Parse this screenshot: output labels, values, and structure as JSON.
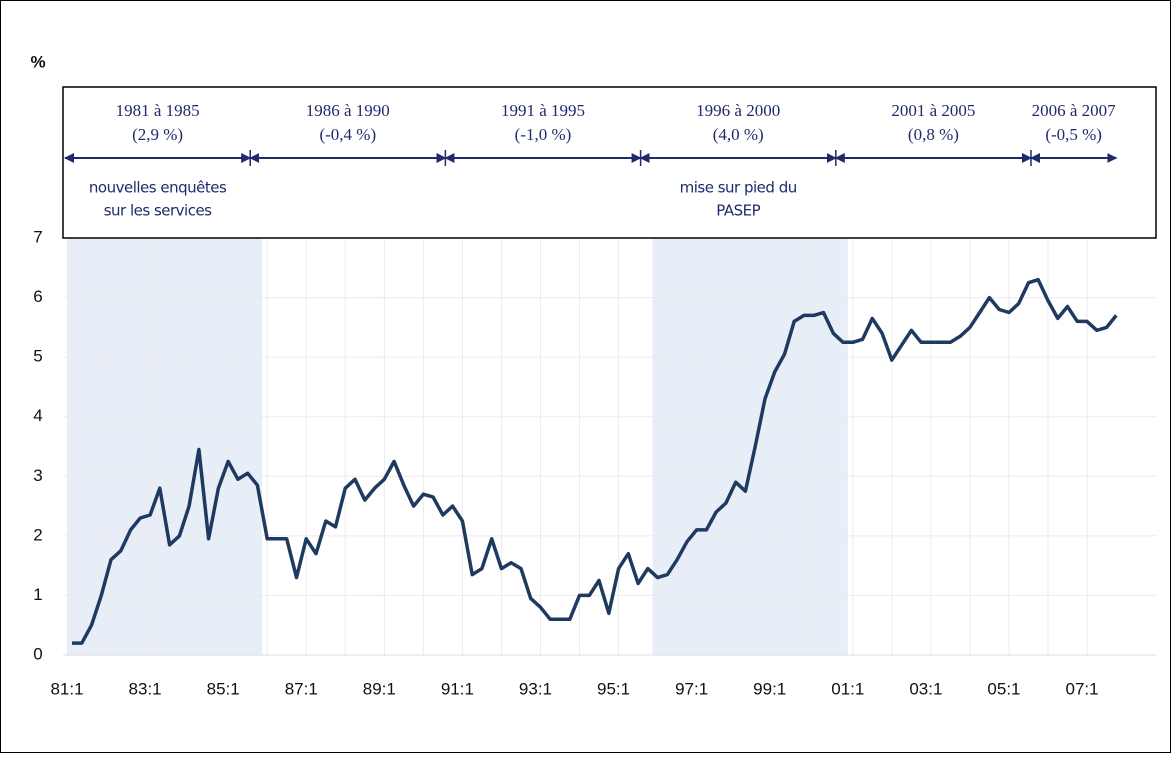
{
  "chart_data": {
    "type": "line",
    "y_label": "%",
    "categories": [
      "81:1",
      null,
      null,
      null,
      null,
      null,
      null,
      null,
      "83:1",
      null,
      null,
      null,
      null,
      null,
      null,
      null,
      "85:1",
      null,
      null,
      null,
      null,
      null,
      null,
      null,
      "87:1",
      null,
      null,
      null,
      null,
      null,
      null,
      null,
      "89:1",
      null,
      null,
      null,
      null,
      null,
      null,
      null,
      "91:1",
      null,
      null,
      null,
      null,
      null,
      null,
      null,
      "93:1",
      null,
      null,
      null,
      null,
      null,
      null,
      null,
      "95:1",
      null,
      null,
      null,
      null,
      null,
      null,
      null,
      "97:1",
      null,
      null,
      null,
      null,
      null,
      null,
      null,
      "99:1",
      null,
      null,
      null,
      null,
      null,
      null,
      null,
      "01:1",
      null,
      null,
      null,
      null,
      null,
      null,
      null,
      "03:1",
      null,
      null,
      null,
      null,
      null,
      null,
      null,
      "05:1",
      null,
      null,
      null,
      null,
      null,
      null,
      null,
      "07:1",
      null,
      null,
      null
    ],
    "series": [
      {
        "color": "#1f3a60",
        "values": [
          0.2,
          0.2,
          0.5,
          1.0,
          1.6,
          1.75,
          2.1,
          2.3,
          2.35,
          2.8,
          1.85,
          2.0,
          2.5,
          3.45,
          1.95,
          2.8,
          3.25,
          2.95,
          3.05,
          2.85,
          1.95,
          1.95,
          1.95,
          1.3,
          1.95,
          1.7,
          2.25,
          2.15,
          2.8,
          2.95,
          2.6,
          2.8,
          2.95,
          3.25,
          2.85,
          2.5,
          2.7,
          2.65,
          2.35,
          2.5,
          2.25,
          1.35,
          1.45,
          1.95,
          1.45,
          1.55,
          1.45,
          0.95,
          0.8,
          0.6,
          0.6,
          0.6,
          1.0,
          1.0,
          1.25,
          0.7,
          1.45,
          1.7,
          1.2,
          1.45,
          1.3,
          1.35,
          1.6,
          1.9,
          2.1,
          2.1,
          2.4,
          2.55,
          2.9,
          2.75,
          3.5,
          4.3,
          4.75,
          5.05,
          5.6,
          5.7,
          5.7,
          5.75,
          5.4,
          5.25,
          5.25,
          5.3,
          5.65,
          5.4,
          4.95,
          5.2,
          5.45,
          5.25,
          5.25,
          5.25,
          5.25,
          5.35,
          5.5,
          5.75,
          6.0,
          5.8,
          5.75,
          5.9,
          6.25,
          6.3,
          5.95,
          5.65,
          5.85,
          5.6,
          5.6,
          5.45,
          5.5,
          5.7
        ]
      }
    ],
    "ylim": [
      0,
      7
    ],
    "yticks": [
      0,
      1,
      2,
      3,
      4,
      5,
      6,
      7
    ],
    "grid": true,
    "shade_color": "#e8eef8",
    "periods": [
      {
        "label": "1981 à 1985",
        "growth": "(2,9 %)",
        "note": [
          "nouvelles enquêtes",
          "sur les services"
        ],
        "shaded": true
      },
      {
        "label": "1986 à 1990",
        "growth": "(-0,4  %)",
        "note": [],
        "shaded": false
      },
      {
        "label": "1991 à 1995",
        "growth": "(-1,0  %)",
        "note": [],
        "shaded": false
      },
      {
        "label": "1996 à 2000",
        "growth": "(4,0  %)",
        "note": [
          "mise sur pied du",
          "PASEP"
        ],
        "shaded": true
      },
      {
        "label": "2001 à 2005",
        "growth": "(0,8  %)",
        "note": [],
        "shaded": false
      },
      {
        "label": "2006 à 2007",
        "growth": "(-0,5  %)",
        "note": [],
        "shaded": false
      }
    ]
  }
}
